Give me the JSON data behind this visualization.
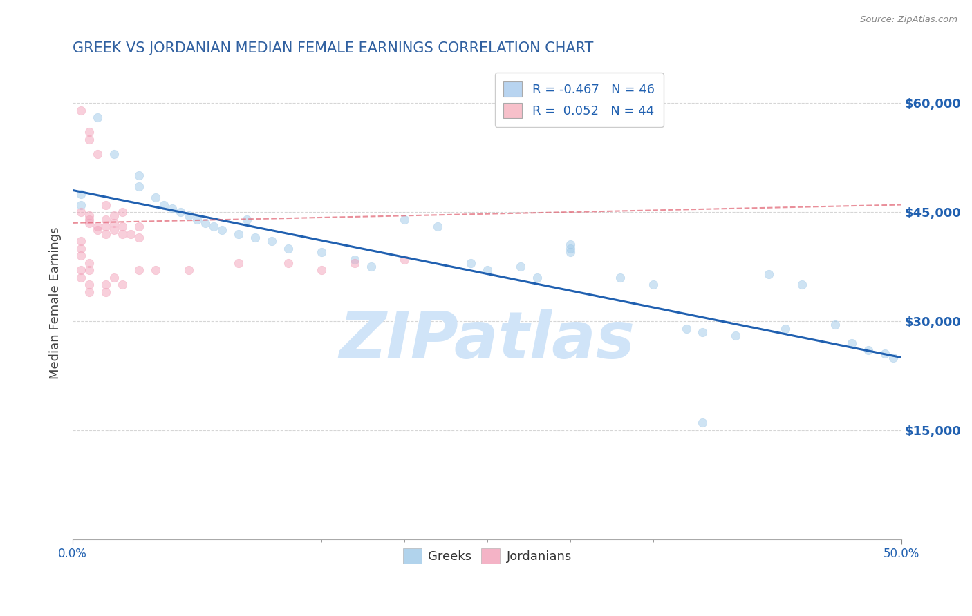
{
  "title": "GREEK VS JORDANIAN MEDIAN FEMALE EARNINGS CORRELATION CHART",
  "source": "Source: ZipAtlas.com",
  "ylabel": "Median Female Earnings",
  "y_tick_labels": [
    "$15,000",
    "$30,000",
    "$45,000",
    "$60,000"
  ],
  "y_tick_values": [
    15000,
    30000,
    45000,
    60000
  ],
  "ylim": [
    0,
    65000
  ],
  "xlim": [
    0,
    0.5
  ],
  "legend_entries": [
    {
      "label_r": "R = -0.467",
      "label_n": "N = 46",
      "color": "#b8d4f0"
    },
    {
      "label_r": "R =  0.052",
      "label_n": "N = 44",
      "color": "#f7c0ca"
    }
  ],
  "greek_color": "#9ec8e8",
  "jordanian_color": "#f2a0b8",
  "greek_line_color": "#2060b0",
  "jordanian_line_color": "#e06070",
  "watermark": "ZIPatlas",
  "watermark_color": "#d0e4f8",
  "title_color": "#3060a0",
  "axis_label_color": "#444444",
  "tick_label_color": "#2060b0",
  "background_color": "#ffffff",
  "grid_color": "#cccccc",
  "greek_intercept": 48000,
  "greek_slope": -46000,
  "jordanian_intercept": 43500,
  "jordanian_slope": 5000,
  "greek_dots": [
    [
      0.015,
      58000
    ],
    [
      0.025,
      53000
    ],
    [
      0.04,
      50000
    ],
    [
      0.04,
      48500
    ],
    [
      0.05,
      47000
    ],
    [
      0.055,
      46000
    ],
    [
      0.06,
      45500
    ],
    [
      0.065,
      45000
    ],
    [
      0.07,
      44500
    ],
    [
      0.075,
      44000
    ],
    [
      0.08,
      43500
    ],
    [
      0.085,
      43000
    ],
    [
      0.09,
      42500
    ],
    [
      0.1,
      42000
    ],
    [
      0.105,
      44000
    ],
    [
      0.11,
      41500
    ],
    [
      0.12,
      41000
    ],
    [
      0.13,
      40000
    ],
    [
      0.15,
      39500
    ],
    [
      0.17,
      38500
    ],
    [
      0.18,
      37500
    ],
    [
      0.2,
      44000
    ],
    [
      0.22,
      43000
    ],
    [
      0.24,
      38000
    ],
    [
      0.25,
      37000
    ],
    [
      0.27,
      37500
    ],
    [
      0.28,
      36000
    ],
    [
      0.3,
      40000
    ],
    [
      0.3,
      39500
    ],
    [
      0.33,
      36000
    ],
    [
      0.35,
      35000
    ],
    [
      0.37,
      29000
    ],
    [
      0.38,
      28500
    ],
    [
      0.4,
      28000
    ],
    [
      0.42,
      36500
    ],
    [
      0.43,
      29000
    ],
    [
      0.44,
      35000
    ],
    [
      0.46,
      29500
    ],
    [
      0.47,
      27000
    ],
    [
      0.48,
      26000
    ],
    [
      0.49,
      25500
    ],
    [
      0.495,
      25000
    ],
    [
      0.38,
      16000
    ],
    [
      0.005,
      47500
    ],
    [
      0.005,
      46000
    ],
    [
      0.3,
      40500
    ]
  ],
  "jordanian_dots": [
    [
      0.005,
      59000
    ],
    [
      0.01,
      56000
    ],
    [
      0.01,
      55000
    ],
    [
      0.015,
      53000
    ],
    [
      0.005,
      45000
    ],
    [
      0.01,
      44500
    ],
    [
      0.01,
      44000
    ],
    [
      0.01,
      43500
    ],
    [
      0.015,
      43000
    ],
    [
      0.015,
      42500
    ],
    [
      0.02,
      44000
    ],
    [
      0.02,
      43000
    ],
    [
      0.02,
      46000
    ],
    [
      0.02,
      42000
    ],
    [
      0.025,
      43500
    ],
    [
      0.025,
      42500
    ],
    [
      0.025,
      44500
    ],
    [
      0.03,
      45000
    ],
    [
      0.03,
      43000
    ],
    [
      0.03,
      42000
    ],
    [
      0.035,
      42000
    ],
    [
      0.04,
      43000
    ],
    [
      0.04,
      41500
    ],
    [
      0.005,
      41000
    ],
    [
      0.005,
      40000
    ],
    [
      0.005,
      39000
    ],
    [
      0.005,
      37000
    ],
    [
      0.005,
      36000
    ],
    [
      0.01,
      38000
    ],
    [
      0.01,
      37000
    ],
    [
      0.01,
      35000
    ],
    [
      0.01,
      34000
    ],
    [
      0.02,
      35000
    ],
    [
      0.02,
      34000
    ],
    [
      0.025,
      36000
    ],
    [
      0.03,
      35000
    ],
    [
      0.04,
      37000
    ],
    [
      0.05,
      37000
    ],
    [
      0.07,
      37000
    ],
    [
      0.1,
      38000
    ],
    [
      0.13,
      38000
    ],
    [
      0.15,
      37000
    ],
    [
      0.17,
      38000
    ],
    [
      0.2,
      38500
    ]
  ]
}
